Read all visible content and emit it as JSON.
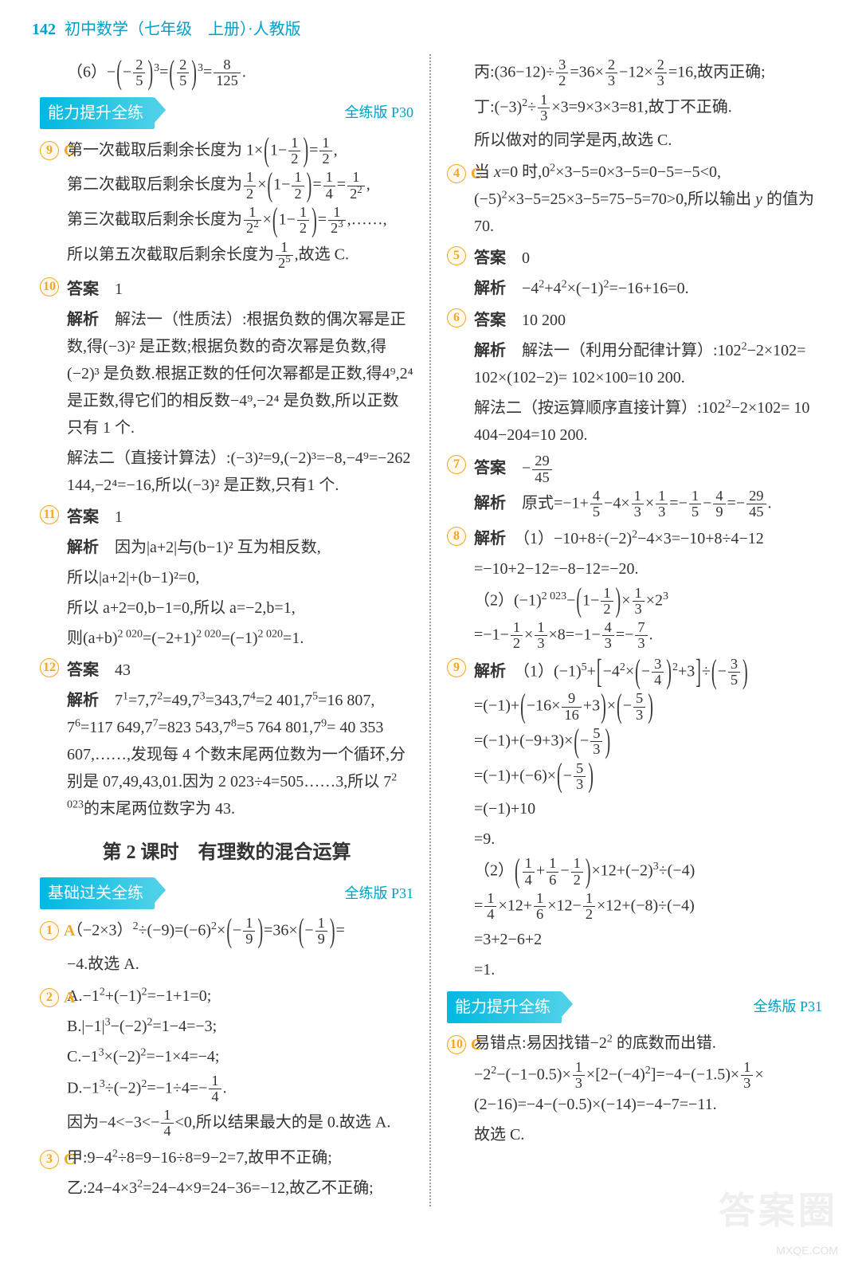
{
  "colors": {
    "accent": "#00a0c8",
    "badge": "#f5a623",
    "text": "#333",
    "divider": "#999"
  },
  "header": {
    "page_num": "142",
    "title": "初中数学（七年级　上册）·人教版"
  },
  "sections": {
    "ability_up": {
      "label": "能力提升全练",
      "ref": "全练版 P30"
    },
    "basic": {
      "label": "基础过关全练",
      "ref": "全练版 P31"
    },
    "ability_up2": {
      "label": "能力提升全练",
      "ref2": "全练版 P31"
    }
  },
  "lesson": "第 2 课时　有理数的混合运算",
  "labels": {
    "answer": "答案",
    "analysis": "解析"
  },
  "left": {
    "line6": "（6）−(−2/5)³=(2/5)³=8/125.",
    "q9": {
      "num": "9",
      "letter": "C",
      "l1": "第一次截取后剩余长度为 1×(1−1/2)=1/2,",
      "l2": "第二次截取后剩余长度为 1/2×(1−1/2)=1/4=1/2²,",
      "l3": "第三次截取后剩余长度为 1/2²×(1−1/2)=1/2³,……,",
      "l4": "所以第五次截取后剩余长度为 1/2⁵,故选 C."
    },
    "q10": {
      "num": "10",
      "ans": "1",
      "a1": "解法一（性质法）:根据负数的偶次幂是正数,得(−3)² 是正数;根据负数的奇次幂是负数,得(−2)³ 是负数.根据正数的任何次幂都是正数,得4⁹,2⁴ 是正数,得它们的相反数−4⁹,−2⁴ 是负数,所以正数只有 1 个.",
      "a2": "解法二（直接计算法）:(−3)²=9,(−2)³=−8,−4⁹=−262 144,−2⁴=−16,所以(−3)² 是正数,只有1 个."
    },
    "q11": {
      "num": "11",
      "ans": "1",
      "a1": "因为|a+2|与(b−1)² 互为相反数,",
      "a2": "所以|a+2|+(b−1)²=0,",
      "a3": "所以 a+2=0,b−1=0,所以 a=−2,b=1,",
      "a4": "则(a+b)^2020=(−2+1)^2020=(−1)^2020=1."
    },
    "q12": {
      "num": "12",
      "ans": "43",
      "a1": "7¹=7,7²=49,7³=343,7⁴=2 401,7⁵=16 807,7⁶=117 649,7⁷=823 543,7⁸=5 764 801,7⁹=40 353 607,……,发现每 4 个数末尾两位数为一个循环,分别是 07,49,43,01.因为 2 023÷4=505……3,所以 7^2023 的末尾两位数字为 43."
    },
    "q1": {
      "num": "1",
      "letter": "A",
      "l1": "（−2×3）²÷(−9)=(−6)²×(−1/9)=36×(−1/9)=",
      "l2": "−4.故选 A."
    },
    "q2": {
      "num": "2",
      "letter": "A",
      "a": "A.−1²+(−1)²=−1+1=0;",
      "b": "B.|−1|³−(−2)²=1−4=−3;",
      "c": "C.−1³×(−2)²=−1×4=−4;",
      "d": "D.−1³÷(−2)²=−1÷4=−1/4.",
      "e": "因为−4<−3<−1/4<0,所以结果最大的是 0.故选 A."
    },
    "q3": {
      "num": "3",
      "letter": "C",
      "l1": "甲:9−4²÷8=9−16÷8=9−2=7,故甲不正确;",
      "l2": "乙:24−4×3²=24−4×9=24−36=−12,故乙不正确;"
    }
  },
  "right": {
    "l_bing": "丙:(36−12)÷3/2=36×2/3−12×2/3=16,故丙正确;",
    "l_ding": "丁:(−3)²÷1/3×3=9×3×3=81,故丁不正确.",
    "l_conc": "所以做对的同学是丙,故选 C.",
    "q4": {
      "num": "4",
      "letter": "C",
      "l1": "当 x=0 时,0²×3−5=0×3−5=0−5=−5<0,(−5)²×3−5=25×3−5=75−5=70>0,所以输出 y 的值为 70."
    },
    "q5": {
      "num": "5",
      "ans": "0",
      "a1": "−4²+4²×(−1)²=−16+16=0."
    },
    "q6": {
      "num": "6",
      "ans": "10 200",
      "a1": "解法一（利用分配律计算）:102²−2×102=102×(102−2)=102×100=10 200.",
      "a2": "解法二（按运算顺序直接计算）:102²−2×102=10 404−204=10 200."
    },
    "q7": {
      "num": "7",
      "ans_frac": {
        "n": "29",
        "d": "45",
        "neg": true
      },
      "a1": "原式=−1+4/5−4×1/3×1/3=−1/5−4/9=−29/45."
    },
    "q8": {
      "num": "8",
      "p1a": "（1）−10+8÷(−2)²−4×3=−10+8÷4−12",
      "p1b": "=−10+2−12=−8−12=−20.",
      "p2a": "（2）(−1)^2023−(1−1/2)×1/3×2³",
      "p2b": "=−1−1/2×1/3×8=−1−4/3=−7/3."
    },
    "q9": {
      "num": "9",
      "p1a": "（1）(−1)⁵+[−4²×(−3/4)²+3]÷(−3/5)",
      "p1b": "=(−1)+(−16×9/16+3)×(−5/3)",
      "p1c": "=(−1)+(−9+3)×(−5/3)",
      "p1d": "=(−1)+(−6)×(−5/3)",
      "p1e": "=(−1)+10",
      "p1f": "=9.",
      "p2a": "（2）(1/4+1/6−1/2)×12+(−2)³÷(−4)",
      "p2b": "=1/4×12+1/6×12−1/2×12+(−8)÷(−4)",
      "p2c": "=3+2−6+2",
      "p2d": "=1."
    },
    "q10c": {
      "num": "10",
      "letter": "C",
      "l1": "易错点:易因找错−2² 的底数而出错.",
      "l2": "−2²−(−1−0.5)×1/3×[2−(−4)²]=−4−(−1.5)×1/3×(2−16)=−4−(−0.5)×(−14)=−4−7=−11.",
      "l3": "故选 C."
    }
  },
  "watermark": {
    "big": "答案圈",
    "small": "MXQE.COM"
  }
}
